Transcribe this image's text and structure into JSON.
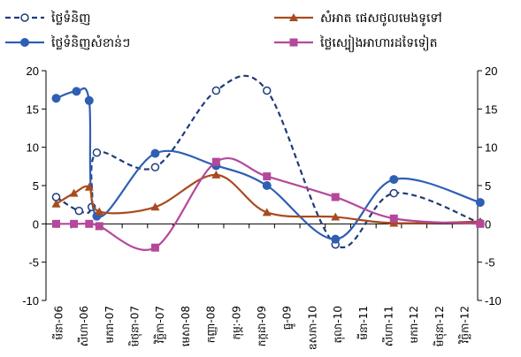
{
  "chart_data": {
    "type": "line",
    "categories": [
      "មីនា-06",
      "សីហា-06",
      "មករា-07",
      "មិថុនា-07",
      "វិច្ឆិកា-07",
      "មេសា-08",
      "កញ្ញា-08",
      "កុម្ភៈ-09",
      "កក្កដា-09",
      "ធ្នូ-09",
      "ឧសភា-10",
      "តុលា-10",
      "មីនា-11",
      "សីហា-11",
      "មករា-12",
      "មិថុនា-12",
      "វិច្ឆិកា-12"
    ],
    "ylim": [
      -10,
      20
    ],
    "yticks": [
      -10,
      -5,
      0,
      5,
      10,
      15,
      20
    ],
    "grid": false,
    "legend_position": "top",
    "series": [
      {
        "name": "ថ្លៃទំនិញ",
        "color": "#1f3b7a",
        "dash": true,
        "marker": "circle-open",
        "x": [
          -0.1,
          0.8,
          1.3,
          1.5,
          3.8,
          6.2,
          8.2,
          10.9,
          13.2,
          16.6
        ],
        "y": [
          3.5,
          1.7,
          2.2,
          9.3,
          7.4,
          17.4,
          17.4,
          -2.7,
          4.0,
          0.1
        ]
      },
      {
        "name": "ថ្លៃទំនិញសំខាន់ៗ",
        "color": "#2e5fb5",
        "dash": false,
        "marker": "circle",
        "x": [
          -0.1,
          0.7,
          1.2,
          1.5,
          3.8,
          6.2,
          8.2,
          10.9,
          13.2,
          16.6
        ],
        "y": [
          16.4,
          17.3,
          16.1,
          1.0,
          9.2,
          7.6,
          5.0,
          -2.0,
          5.8,
          2.8
        ]
      },
      {
        "name": "សំអាត ផេសថូលមេងទូទៅ",
        "color": "#a84b1f",
        "dash": false,
        "marker": "triangle",
        "x": [
          -0.1,
          0.6,
          1.2,
          1.6,
          3.8,
          6.2,
          8.2,
          10.9,
          13.2,
          16.6
        ],
        "y": [
          2.6,
          4.0,
          4.8,
          1.6,
          2.2,
          6.4,
          1.5,
          0.9,
          0.1,
          0.3
        ]
      },
      {
        "name": "ថ្លៃស្បៀងអាហារដទៃទៀត",
        "color": "#b5489a",
        "dash": false,
        "marker": "square",
        "x": [
          -0.1,
          0.6,
          1.2,
          1.6,
          3.8,
          6.2,
          8.2,
          10.9,
          13.2,
          16.6
        ],
        "y": [
          0.0,
          0.0,
          0.0,
          -0.3,
          -3.1,
          8.1,
          6.2,
          3.5,
          0.7,
          0.0
        ]
      }
    ]
  }
}
